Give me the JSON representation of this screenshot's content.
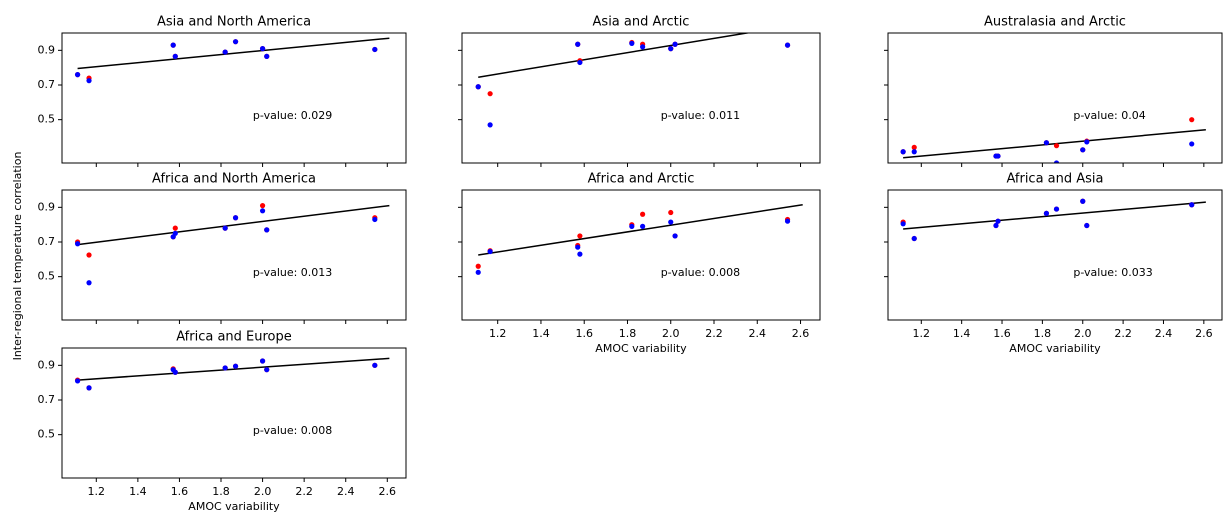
{
  "ylabel": "Inter-regional temperature correlation",
  "chart_data": [
    {
      "type": "scatter",
      "title": "Asia and North America",
      "annotation": "p-value: 0.029",
      "x": [
        1.11,
        1.165,
        1.57,
        1.58,
        1.82,
        1.87,
        2.0,
        2.02,
        2.54
      ],
      "series": [
        {
          "color": "#ff0000",
          "values": [
            0.76,
            0.74,
            0.93,
            0.865,
            0.89,
            0.95,
            0.91,
            0.865,
            0.905
          ]
        },
        {
          "color": "#0000ff",
          "values": [
            0.76,
            0.725,
            0.93,
            0.865,
            0.89,
            0.95,
            0.91,
            0.865,
            0.905
          ]
        }
      ],
      "fit": {
        "color": "#000000",
        "x": [
          1.11,
          2.61
        ],
        "y": [
          0.795,
          0.97
        ]
      },
      "xlim": [
        1.035,
        2.69
      ],
      "ylim": [
        0.25,
        1.0
      ],
      "xticks": [
        1.2,
        1.4,
        1.6,
        1.8,
        {
          "value": 2,
          "label": "2.0"
        },
        2.2,
        2.4,
        2.6
      ],
      "yticks": [
        0.5,
        0.7,
        0.9
      ],
      "show_xtick_labels": false,
      "show_ytick_labels": true
    },
    {
      "type": "scatter",
      "title": "Asia and Arctic",
      "annotation": "p-value: 0.011",
      "x": [
        1.11,
        1.165,
        1.57,
        1.58,
        1.82,
        1.87,
        2.0,
        2.02,
        2.54
      ],
      "series": [
        {
          "color": "#ff0000",
          "values": [
            0.69,
            0.65,
            0.935,
            0.84,
            0.945,
            0.935,
            0.91,
            0.935,
            0.93
          ]
        },
        {
          "color": "#0000ff",
          "values": [
            0.69,
            0.47,
            0.935,
            0.83,
            0.94,
            0.92,
            0.91,
            0.935,
            0.93
          ]
        }
      ],
      "fit": {
        "color": "#000000",
        "x": [
          1.11,
          2.61
        ],
        "y": [
          0.745,
          1.053
        ]
      },
      "xlim": [
        1.035,
        2.69
      ],
      "ylim": [
        0.25,
        1.0
      ],
      "xticks": [
        1.2,
        1.4,
        1.6,
        1.8,
        {
          "value": 2,
          "label": "2.0"
        },
        2.2,
        2.4,
        2.6
      ],
      "yticks": [
        0.5,
        0.7,
        0.9
      ],
      "show_xtick_labels": false,
      "show_ytick_labels": false
    },
    {
      "type": "scatter",
      "title": "Australasia and Arctic",
      "annotation": "p-value: 0.04",
      "x": [
        1.11,
        1.165,
        1.57,
        1.58,
        1.82,
        1.87,
        2.0,
        2.02,
        2.54
      ],
      "series": [
        {
          "color": "#ff0000",
          "values": [
            0.315,
            0.34,
            0.29,
            0.29,
            0.367,
            0.35,
            0.326,
            0.376,
            0.5
          ]
        },
        {
          "color": "#0000ff",
          "values": [
            0.315,
            0.315,
            0.29,
            0.29,
            0.367,
            0.25,
            0.326,
            0.372,
            0.36
          ]
        }
      ],
      "fit": {
        "color": "#000000",
        "x": [
          1.11,
          2.61
        ],
        "y": [
          0.28,
          0.442
        ]
      },
      "xlim": [
        1.035,
        2.69
      ],
      "ylim": [
        0.25,
        1.0
      ],
      "xticks": [
        1.2,
        1.4,
        1.6,
        1.8,
        {
          "value": 2,
          "label": "2.0"
        },
        2.2,
        2.4,
        2.6
      ],
      "yticks": [
        0.5,
        0.7,
        0.9
      ],
      "show_xtick_labels": false,
      "show_ytick_labels": false
    },
    {
      "type": "scatter",
      "title": "Africa and North America",
      "annotation": "p-value: 0.013",
      "x": [
        1.11,
        1.165,
        1.57,
        1.58,
        1.82,
        1.87,
        2.0,
        2.02,
        2.54
      ],
      "series": [
        {
          "color": "#ff0000",
          "values": [
            0.7,
            0.625,
            0.73,
            0.78,
            0.78,
            0.84,
            0.91,
            0.77,
            0.84
          ]
        },
        {
          "color": "#0000ff",
          "values": [
            0.69,
            0.465,
            0.73,
            0.75,
            0.78,
            0.84,
            0.88,
            0.77,
            0.83
          ]
        }
      ],
      "fit": {
        "color": "#000000",
        "x": [
          1.11,
          2.61
        ],
        "y": [
          0.685,
          0.91
        ]
      },
      "xlim": [
        1.035,
        2.69
      ],
      "ylim": [
        0.25,
        1.0
      ],
      "xticks": [
        1.2,
        1.4,
        1.6,
        1.8,
        {
          "value": 2,
          "label": "2.0"
        },
        2.2,
        2.4,
        2.6
      ],
      "yticks": [
        0.5,
        0.7,
        0.9
      ],
      "show_xtick_labels": false,
      "show_ytick_labels": true
    },
    {
      "type": "scatter",
      "title": "Africa and Arctic",
      "annotation": "p-value: 0.008",
      "xlabel": "AMOC variability",
      "x": [
        1.11,
        1.165,
        1.57,
        1.58,
        1.82,
        1.87,
        2.0,
        2.02,
        2.54
      ],
      "series": [
        {
          "color": "#ff0000",
          "values": [
            0.56,
            0.65,
            0.68,
            0.735,
            0.8,
            0.86,
            0.87,
            0.735,
            0.83
          ]
        },
        {
          "color": "#0000ff",
          "values": [
            0.525,
            0.645,
            0.67,
            0.63,
            0.79,
            0.79,
            0.815,
            0.735,
            0.82
          ]
        }
      ],
      "fit": {
        "color": "#000000",
        "x": [
          1.11,
          2.61
        ],
        "y": [
          0.625,
          0.915
        ]
      },
      "xlim": [
        1.035,
        2.69
      ],
      "ylim": [
        0.25,
        1.0
      ],
      "xticks": [
        1.2,
        1.4,
        1.6,
        1.8,
        {
          "value": 2,
          "label": "2.0"
        },
        2.2,
        2.4,
        2.6
      ],
      "yticks": [
        0.5,
        0.7,
        0.9
      ],
      "show_xtick_labels": true,
      "show_ytick_labels": false
    },
    {
      "type": "scatter",
      "title": "Africa and Asia",
      "annotation": "p-value: 0.033",
      "xlabel": "AMOC variability",
      "x": [
        1.11,
        1.165,
        1.57,
        1.58,
        1.82,
        1.87,
        2.0,
        2.02,
        2.54
      ],
      "series": [
        {
          "color": "#ff0000",
          "values": [
            0.815,
            0.72,
            0.795,
            0.82,
            0.865,
            0.89,
            0.935,
            0.795,
            0.915
          ]
        },
        {
          "color": "#0000ff",
          "values": [
            0.805,
            0.72,
            0.795,
            0.82,
            0.865,
            0.89,
            0.935,
            0.795,
            0.915
          ]
        }
      ],
      "fit": {
        "color": "#000000",
        "x": [
          1.11,
          2.61
        ],
        "y": [
          0.775,
          0.93
        ]
      },
      "xlim": [
        1.035,
        2.69
      ],
      "ylim": [
        0.25,
        1.0
      ],
      "xticks": [
        1.2,
        1.4,
        1.6,
        1.8,
        {
          "value": 2,
          "label": "2.0"
        },
        2.2,
        2.4,
        2.6
      ],
      "yticks": [
        0.5,
        0.7,
        0.9
      ],
      "show_xtick_labels": true,
      "show_ytick_labels": false
    },
    {
      "type": "scatter",
      "title": "Africa and Europe",
      "annotation": "p-value: 0.008",
      "xlabel": "AMOC variability",
      "x": [
        1.11,
        1.165,
        1.57,
        1.58,
        1.82,
        1.87,
        2.0,
        2.02,
        2.54
      ],
      "series": [
        {
          "color": "#ff0000",
          "values": [
            0.815,
            0.77,
            0.88,
            0.86,
            0.885,
            0.895,
            0.925,
            0.875,
            0.9
          ]
        },
        {
          "color": "#0000ff",
          "values": [
            0.81,
            0.77,
            0.875,
            0.86,
            0.885,
            0.895,
            0.925,
            0.875,
            0.9
          ]
        }
      ],
      "fit": {
        "color": "#000000",
        "x": [
          1.11,
          2.61
        ],
        "y": [
          0.815,
          0.94
        ]
      },
      "xlim": [
        1.035,
        2.69
      ],
      "ylim": [
        0.25,
        1.0
      ],
      "xticks": [
        1.2,
        1.4,
        1.6,
        1.8,
        {
          "value": 2,
          "label": "2.0"
        },
        2.2,
        2.4,
        2.6
      ],
      "yticks": [
        0.5,
        0.7,
        0.9
      ],
      "show_xtick_labels": true,
      "show_ytick_labels": true
    }
  ]
}
